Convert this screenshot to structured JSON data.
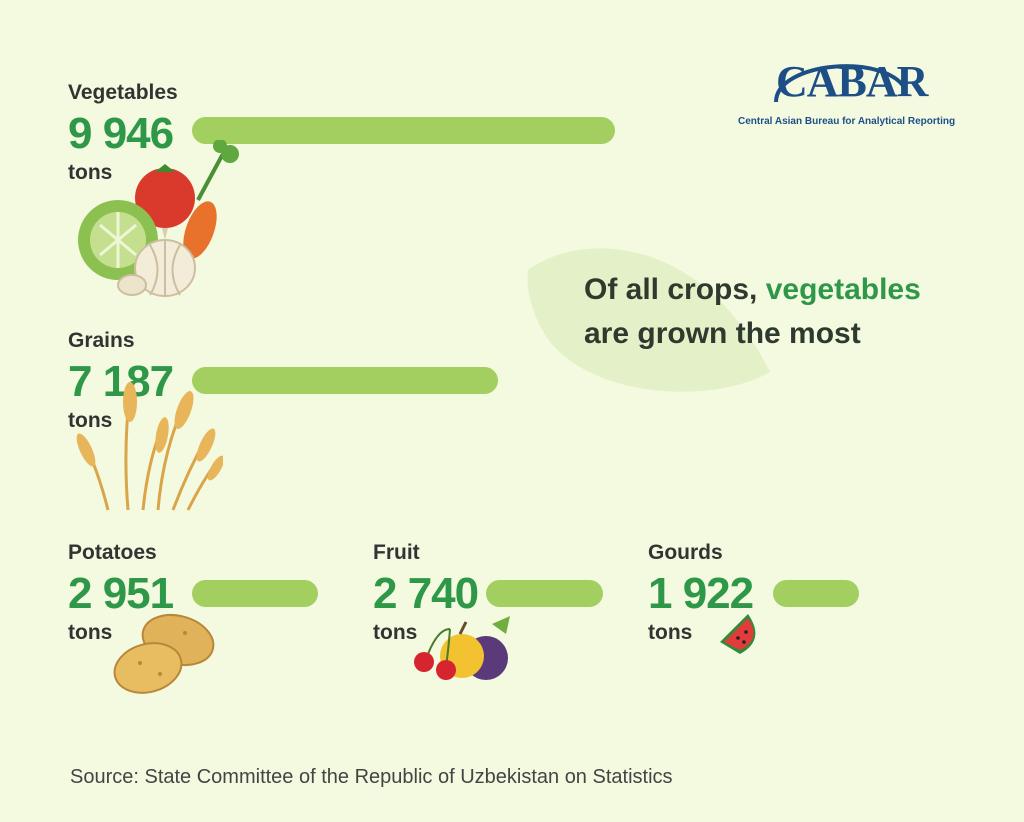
{
  "headline": {
    "part1": "Of all crops, ",
    "accent": "vegetables",
    "part2": "are grown the most"
  },
  "logo": {
    "word": "CABAR",
    "tagline": "Central Asian Bureau for Analytical Reporting"
  },
  "source": "Source: State Committee of the Republic of Uzbekistan on Statistics",
  "colors": {
    "background": "#f3fae0",
    "bar": "#a2cf5f",
    "value": "#2e9748",
    "brand": "#1d4f86"
  },
  "chart_data": {
    "type": "bar",
    "unit": "tons",
    "categories": [
      "Vegetables",
      "Grains",
      "Potatoes",
      "Fruit",
      "Gourds"
    ],
    "values": [
      9946,
      7187,
      2951,
      2740,
      1922
    ],
    "value_labels": [
      "9 946",
      "7 187",
      "2 951",
      "2 740",
      "1 922"
    ],
    "icons": [
      "vegetables-illustration",
      "wheat-illustration",
      "potatoes-illustration",
      "fruit-illustration",
      "watermelon-illustration"
    ]
  }
}
